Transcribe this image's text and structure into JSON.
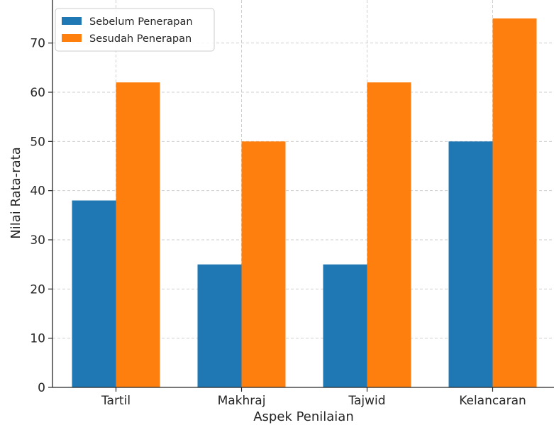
{
  "chart_data": {
    "type": "bar",
    "title": "",
    "xlabel": "Aspek Penilaian",
    "ylabel": "Nilai Rata-rata",
    "categories": [
      "Tartil",
      "Makhraj",
      "Tajwid",
      "Kelancaran"
    ],
    "series": [
      {
        "name": "Sebelum Penerapan",
        "color": "#1f77b4",
        "values": [
          38,
          25,
          25,
          50
        ]
      },
      {
        "name": "Sesudah Penerapan",
        "color": "#ff7f0e",
        "values": [
          62,
          50,
          62,
          75
        ]
      }
    ],
    "ylim": [
      0,
      78.75
    ],
    "yticks": [
      0,
      10,
      20,
      30,
      40,
      50,
      60,
      70
    ],
    "grid": true,
    "legend_position": "top-left"
  }
}
